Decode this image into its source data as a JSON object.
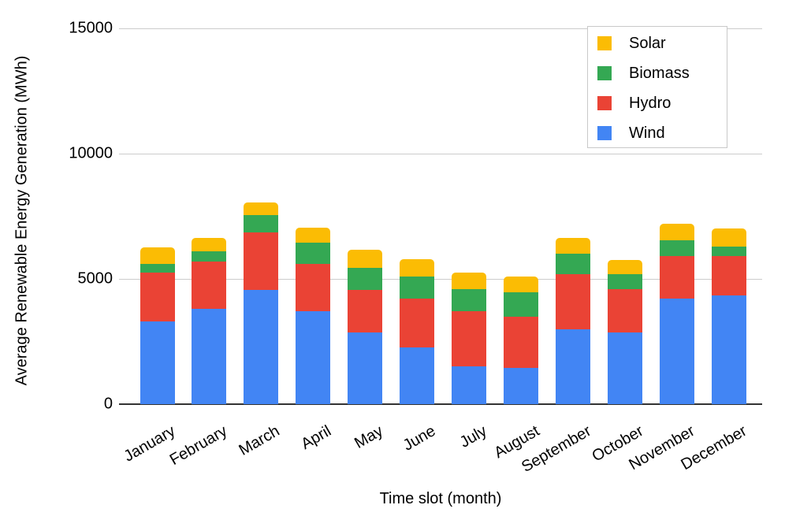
{
  "chart_data": {
    "type": "bar",
    "stacked": true,
    "title": "",
    "xlabel": "Time slot (month)",
    "ylabel": "Average Renewable Energy Generation (MWh)",
    "categories": [
      "January",
      "February",
      "March",
      "April",
      "May",
      "June",
      "July",
      "August",
      "September",
      "October",
      "November",
      "December"
    ],
    "series": [
      {
        "name": "Wind",
        "color": "#4285F4",
        "values": [
          3300,
          3800,
          4550,
          3700,
          2850,
          2250,
          1500,
          1450,
          3000,
          2850,
          4200,
          4350
        ]
      },
      {
        "name": "Hydro",
        "color": "#EA4335",
        "values": [
          1950,
          1900,
          2300,
          1900,
          1700,
          1950,
          2200,
          2050,
          2200,
          1750,
          1700,
          1550
        ]
      },
      {
        "name": "Biomass",
        "color": "#34A853",
        "values": [
          350,
          400,
          700,
          850,
          900,
          900,
          900,
          950,
          800,
          600,
          650,
          400
        ]
      },
      {
        "name": "Solar",
        "color": "#FBBC04",
        "values": [
          650,
          550,
          500,
          600,
          700,
          700,
          650,
          650,
          650,
          550,
          650,
          700
        ]
      }
    ],
    "totals": [
      6250,
      6650,
      8050,
      7050,
      6150,
      5800,
      5250,
      5100,
      6650,
      5750,
      7200,
      7000
    ],
    "y_ticks": [
      0,
      5000,
      10000,
      15000
    ],
    "ylim": [
      0,
      15000
    ],
    "grid": "horizontal",
    "axis_colors": {
      "gridline": "#cccccc",
      "baseline": "#333333",
      "text": "#000000"
    },
    "legend": {
      "position": "top-right",
      "order": [
        "Solar",
        "Biomass",
        "Hydro",
        "Wind"
      ]
    }
  }
}
